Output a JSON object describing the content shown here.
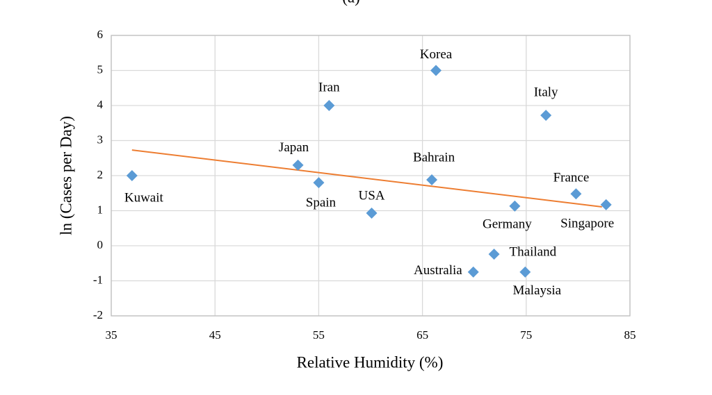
{
  "chart_data": {
    "type": "scatter",
    "title": "(a)",
    "x_label": "Relative Humidity (%)",
    "y_label": "ln (Cases per Day)",
    "series": [
      {
        "color": "#5b9bd5",
        "labels": [
          "Kuwait",
          "Iran",
          "Korea",
          "Italy",
          "Japan",
          "Spain",
          "Bahrain",
          "USA",
          "France",
          "Singapore",
          "Germany",
          "Thailand",
          "Australia",
          "Malaysia"
        ],
        "x": [
          37,
          56,
          66.3,
          76.9,
          53,
          55,
          65.9,
          60.1,
          79.8,
          82.7,
          73.9,
          71.9,
          69.9,
          74.9
        ],
        "values": [
          2.0,
          4.0,
          5.0,
          3.72,
          2.3,
          1.8,
          1.88,
          0.93,
          1.48,
          1.17,
          1.13,
          -0.24,
          -0.75,
          -0.75
        ]
      }
    ],
    "trendline": {
      "x": [
        37,
        82.3
      ],
      "values": [
        2.73,
        1.11
      ],
      "color": "#ed7d31"
    },
    "xlim": [
      35,
      85
    ],
    "xticks": [
      35,
      45,
      55,
      65,
      75,
      85
    ],
    "ylim": [
      -2,
      6
    ],
    "yticks": [
      -2,
      -1,
      0,
      1,
      2,
      3,
      4,
      5,
      6
    ],
    "grid": true
  }
}
